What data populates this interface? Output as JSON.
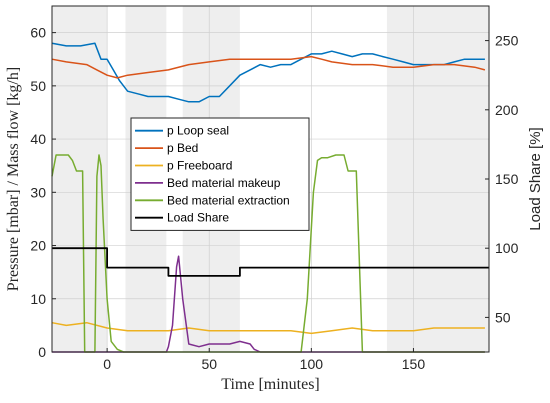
{
  "chart_data": {
    "type": "line",
    "title": "",
    "xlabel": "Time [minutes]",
    "ylabel_left": "Pressure [mbar] / Mass flow [kg/h]",
    "ylabel_right": "Load Share [%]",
    "xlim": [
      -27,
      187
    ],
    "ylim_left": [
      0,
      65
    ],
    "ylim_right": [
      25,
      275
    ],
    "x_ticks": [
      0,
      50,
      100,
      150
    ],
    "y_ticks_left": [
      0,
      10,
      20,
      30,
      40,
      50,
      60
    ],
    "y_ticks_right": [
      50,
      100,
      150,
      200,
      250
    ],
    "grid": true,
    "legend_position": "center-left",
    "shaded_intervals": [
      [
        -27,
        0
      ],
      [
        9,
        29
      ],
      [
        37,
        65
      ],
      [
        137,
        187
      ]
    ],
    "series": [
      {
        "name": "p Loop seal",
        "color": "#0072BD",
        "axis": "left",
        "x": [
          -27,
          -20,
          -13,
          -6,
          -3,
          0,
          3,
          6,
          8,
          10,
          15,
          20,
          25,
          30,
          35,
          40,
          45,
          50,
          55,
          60,
          65,
          70,
          75,
          80,
          85,
          90,
          95,
          100,
          105,
          110,
          115,
          120,
          125,
          130,
          135,
          140,
          145,
          150,
          155,
          160,
          165,
          170,
          175,
          180,
          185
        ],
        "y": [
          58,
          57.5,
          57.5,
          58,
          55,
          55,
          53,
          51,
          50,
          49,
          48.5,
          48,
          48,
          48,
          47.5,
          47,
          47,
          48,
          48,
          50,
          52,
          53,
          54,
          53.5,
          54,
          54,
          55,
          56,
          56,
          56.5,
          56,
          55.5,
          56,
          56,
          55.5,
          55,
          54.5,
          54,
          54,
          54,
          54,
          54.5,
          55,
          55,
          55
        ]
      },
      {
        "name": "p Bed",
        "color": "#D95319",
        "axis": "left",
        "x": [
          -27,
          -20,
          -10,
          -5,
          0,
          5,
          10,
          20,
          30,
          40,
          50,
          60,
          70,
          80,
          90,
          100,
          105,
          110,
          120,
          130,
          140,
          150,
          160,
          170,
          180,
          185
        ],
        "y": [
          55,
          54.5,
          54,
          53,
          52,
          51.5,
          52,
          52.5,
          53,
          54,
          54.5,
          55,
          55,
          55,
          55,
          55.5,
          55,
          54.5,
          54,
          54,
          53.5,
          53.5,
          54,
          54,
          53.5,
          53
        ]
      },
      {
        "name": "p Freeboard",
        "color": "#EDB120",
        "axis": "left",
        "x": [
          -27,
          -20,
          -10,
          0,
          10,
          20,
          30,
          40,
          50,
          60,
          70,
          80,
          90,
          100,
          110,
          120,
          130,
          140,
          150,
          160,
          170,
          180,
          185
        ],
        "y": [
          5.5,
          5,
          5.5,
          4.5,
          4,
          4,
          4,
          4.5,
          4,
          4,
          4,
          4,
          4,
          3.5,
          4,
          4.5,
          4,
          4,
          4,
          4.5,
          4.5,
          4.5,
          4.5
        ]
      },
      {
        "name": "Bed material makeup",
        "color": "#7E2F8E",
        "axis": "left",
        "x": [
          -27,
          20,
          29,
          30,
          32,
          34,
          35,
          37,
          40,
          45,
          50,
          55,
          60,
          65,
          70,
          72,
          75,
          80,
          95,
          185
        ],
        "y": [
          0,
          0,
          0,
          1,
          5,
          16,
          18,
          10,
          1.5,
          1,
          1.5,
          1.5,
          1.5,
          2,
          1.5,
          0.5,
          0,
          0,
          0,
          0
        ]
      },
      {
        "name": "Bed material extraction",
        "color": "#77AC30",
        "axis": "left",
        "x": [
          -27,
          -25,
          -22,
          -19,
          -17,
          -15,
          -12,
          -11,
          -10,
          -6,
          -5,
          -4,
          -3,
          -2,
          0,
          2,
          5,
          8,
          10,
          95,
          98,
          101,
          103,
          105,
          108,
          112,
          116,
          118,
          120,
          122,
          125,
          185
        ],
        "y": [
          33,
          37,
          37,
          37,
          36,
          34,
          34,
          0,
          0,
          0,
          33,
          37,
          35,
          25,
          10,
          2,
          0.5,
          0,
          0,
          0,
          10,
          30,
          36,
          36.5,
          36.5,
          37,
          37,
          34,
          34,
          34,
          0,
          0
        ]
      },
      {
        "name": "Load Share",
        "color": "#000000",
        "axis": "right",
        "x": [
          -27,
          0,
          0,
          30,
          30,
          52,
          52,
          65,
          65,
          187
        ],
        "y": [
          100,
          100,
          86,
          86,
          80,
          80,
          80,
          80,
          86,
          86
        ]
      }
    ]
  }
}
